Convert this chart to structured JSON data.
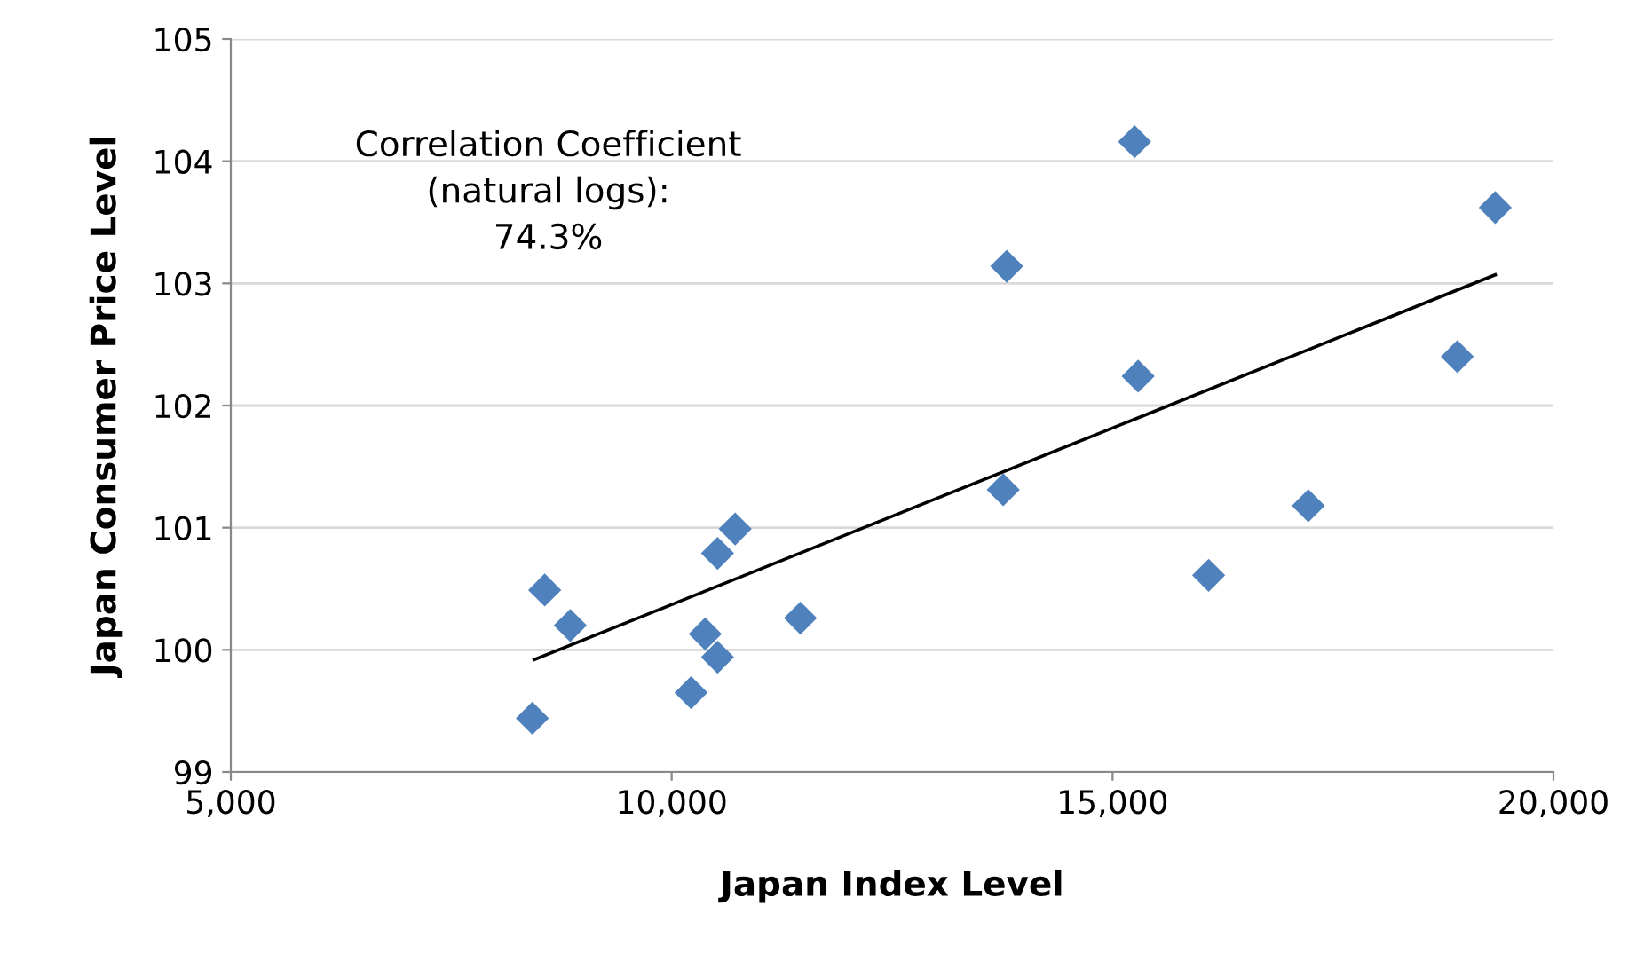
{
  "chart_data": {
    "type": "scatter",
    "xlabel": "Japan Index Level",
    "ylabel": "Japan Consumer Price Level",
    "annotations": [
      "Correlation Coefficient\n(natural logs):\n74.3%"
    ],
    "xlim": [
      5000,
      20000
    ],
    "xticks": [
      {
        "value": 5000,
        "label": "5,000"
      },
      {
        "value": 10000,
        "label": "10,000"
      },
      {
        "value": 15000,
        "label": "15,000"
      },
      {
        "value": 20000,
        "label": "20,000"
      }
    ],
    "ylim": [
      99,
      105
    ],
    "yticks": [
      99,
      100,
      101,
      102,
      103,
      104,
      105
    ],
    "grid": "y",
    "series": [
      {
        "marker": "diamond",
        "color": "#4f81bd",
        "x": [
          8420,
          8560,
          8850,
          10220,
          10380,
          10520,
          10520,
          10720,
          11460,
          13760,
          13800,
          15250,
          15290,
          16090,
          17220,
          18910,
          19340
        ],
        "values": [
          99.44,
          100.49,
          100.2,
          99.65,
          100.13,
          99.94,
          100.79,
          100.99,
          100.26,
          101.31,
          103.14,
          104.16,
          102.24,
          100.61,
          101.18,
          102.4,
          103.62
        ]
      },
      {
        "type": "line",
        "marker": "none",
        "color": "#000000",
        "x": [
          8440,
          19340
        ],
        "values": [
          99.92,
          103.07
        ]
      }
    ]
  }
}
